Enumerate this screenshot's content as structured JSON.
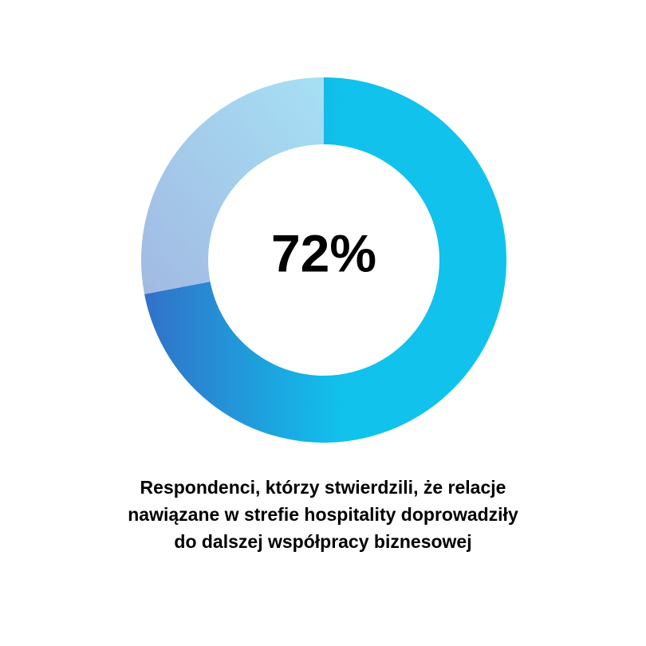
{
  "chart_data": {
    "type": "donut",
    "title": [
      "Respondenci, którzy stwierdzili, że relacje",
      "nawiązane w strefie hospitality doprowadziły",
      "do dalszej współpracy biznesowej"
    ],
    "values": [
      72,
      28
    ],
    "value_labels": [
      "72%",
      null
    ],
    "colors": [
      [
        "#3271c8",
        "#10c2ec"
      ],
      [
        "#a2b9e2",
        "#a6e0f5"
      ]
    ],
    "start_angle": 0,
    "direction": "clockwise"
  }
}
